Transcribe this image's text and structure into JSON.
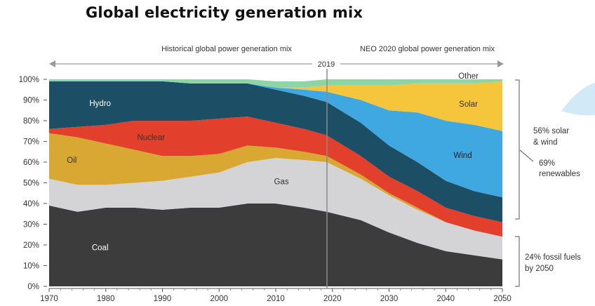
{
  "title": "Global electricity generation mix",
  "header": {
    "historical": "Historical global power generation mix",
    "forecast": "NEO 2020  global power generation mix",
    "split_year": "2019"
  },
  "notes": {
    "solar_wind": [
      "56% solar",
      "& wind"
    ],
    "renewables": [
      "69%",
      "renewables"
    ],
    "fossil": [
      "24% fossil fuels",
      "by 2050"
    ]
  },
  "colors": {
    "Coal": "#3c3c3c",
    "Gas": "#d4d4d6",
    "Oil": "#d8a832",
    "Nuclear": "#e2402c",
    "Hydro": "#1c4e66",
    "Wind": "#3fa8e0",
    "Solar": "#f5c53c",
    "Other": "#8ed5a6"
  },
  "chart_data": {
    "type": "area",
    "stacked": true,
    "xlim": [
      1970,
      2050
    ],
    "ylim": [
      0,
      100
    ],
    "x_ticks": [
      "1970",
      "1980",
      "1990",
      "2000",
      "2010",
      "2020",
      "2030",
      "2040",
      "2050"
    ],
    "y_ticks": [
      "0%",
      "10%",
      "20%",
      "30%",
      "40%",
      "50%",
      "60%",
      "70%",
      "80%",
      "90%",
      "100%"
    ],
    "x": [
      1970,
      1975,
      1980,
      1985,
      1990,
      1995,
      2000,
      2005,
      2010,
      2015,
      2019,
      2025,
      2030,
      2035,
      2040,
      2045,
      2050
    ],
    "series": [
      {
        "name": "Coal",
        "values": [
          39,
          36,
          38,
          38,
          37,
          38,
          38,
          40,
          40,
          38,
          36,
          32,
          26,
          21,
          17,
          15,
          13
        ]
      },
      {
        "name": "Gas",
        "values": [
          13,
          13,
          11,
          12,
          14,
          15,
          17,
          20,
          22,
          23,
          24,
          20,
          18,
          16,
          14,
          12,
          11
        ]
      },
      {
        "name": "Oil",
        "values": [
          22,
          23,
          20,
          16,
          12,
          10,
          9,
          8,
          5,
          4,
          3,
          2,
          1,
          1,
          0,
          0,
          0
        ]
      },
      {
        "name": "Nuclear",
        "values": [
          2,
          5,
          9,
          14,
          17,
          17,
          17,
          14,
          12,
          11,
          10,
          9,
          8,
          8,
          7,
          7,
          7
        ]
      },
      {
        "name": "Hydro",
        "values": [
          23,
          22,
          21,
          19,
          19,
          18,
          17,
          16,
          16,
          16,
          16,
          16,
          15,
          14,
          13,
          12,
          12
        ]
      },
      {
        "name": "Wind",
        "values": [
          0,
          0,
          0,
          0,
          0,
          0,
          0,
          0,
          1,
          3,
          5,
          11,
          17,
          24,
          29,
          32,
          32
        ]
      },
      {
        "name": "Solar",
        "values": [
          0,
          0,
          0,
          0,
          0,
          0,
          0,
          0,
          0,
          1,
          3,
          7,
          12,
          14,
          18,
          20,
          24
        ]
      },
      {
        "name": "Other",
        "values": [
          1,
          1,
          1,
          1,
          1,
          2,
          2,
          2,
          3,
          3,
          3,
          3,
          3,
          2,
          2,
          2,
          1
        ]
      }
    ],
    "labels": {
      "Coal": "Coal",
      "Gas": "Gas",
      "Oil": "Oil",
      "Nuclear": "Nuclear",
      "Hydro": "Hydro",
      "Wind": "Wind",
      "Solar": "Solar",
      "Other": "Other"
    }
  }
}
